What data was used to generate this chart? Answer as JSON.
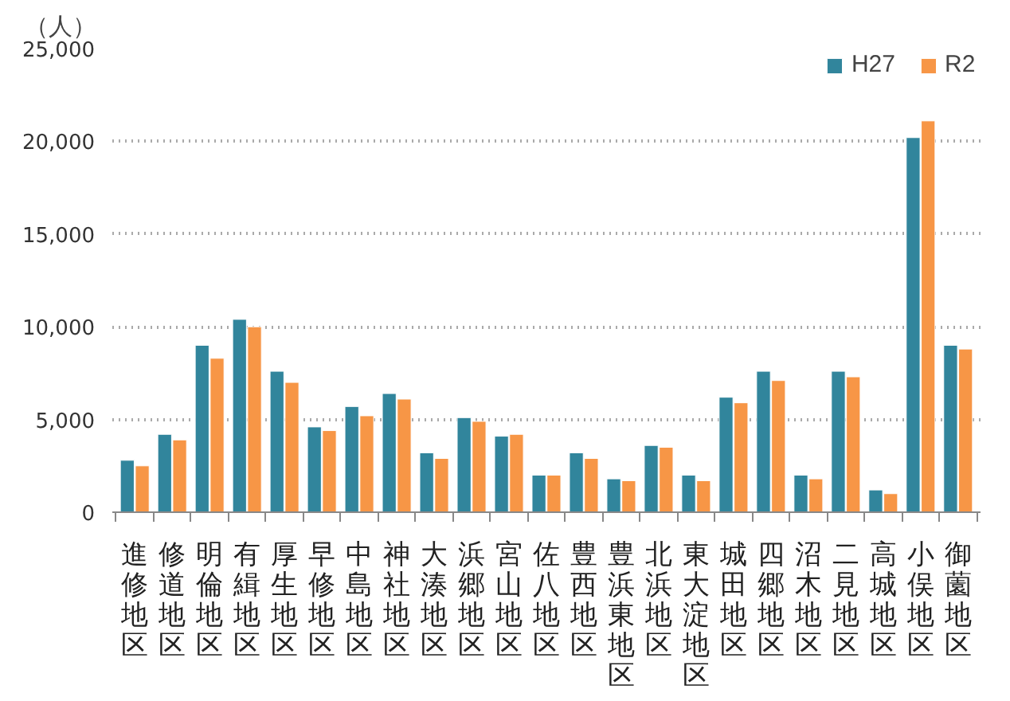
{
  "chart_data": {
    "type": "bar",
    "ylabel": "（人）",
    "categories": [
      "進修地区",
      "修道地区",
      "明倫地区",
      "有緝地区",
      "厚生地区",
      "早修地区",
      "中島地区",
      "神社地区",
      "大湊地区",
      "浜郷地区",
      "宮山地区",
      "佐八地区",
      "豊西地区",
      "豊浜東地区",
      "北浜地区",
      "東大淀地区",
      "城田地区",
      "四郷地区",
      "沼木地区",
      "二見地区",
      "高城地区",
      "小俣地区",
      "御薗地区"
    ],
    "series": [
      {
        "name": "H27",
        "color": "#31859c",
        "values": [
          2800,
          4200,
          9000,
          10400,
          7600,
          4600,
          5700,
          6400,
          3200,
          5100,
          4100,
          2000,
          3200,
          1800,
          3600,
          2000,
          6200,
          7600,
          2000,
          7600,
          1200,
          20200,
          9000
        ]
      },
      {
        "name": "R2",
        "color": "#f79646",
        "values": [
          2500,
          3900,
          8300,
          10000,
          7000,
          4400,
          5200,
          6100,
          2900,
          4900,
          4200,
          2000,
          2900,
          1700,
          3500,
          1700,
          5900,
          7100,
          1800,
          7300,
          1000,
          21100,
          8800
        ]
      }
    ],
    "ylim": [
      0,
      25000
    ],
    "yticks": [
      {
        "value": 0,
        "label": "0"
      },
      {
        "value": 5000,
        "label": "5,000"
      },
      {
        "value": 10000,
        "label": "10,000"
      },
      {
        "value": 15000,
        "label": "15,000"
      },
      {
        "value": 20000,
        "label": "20,000"
      },
      {
        "value": 25000,
        "label": "25,000"
      }
    ],
    "grid": "y",
    "legend": "top right"
  }
}
